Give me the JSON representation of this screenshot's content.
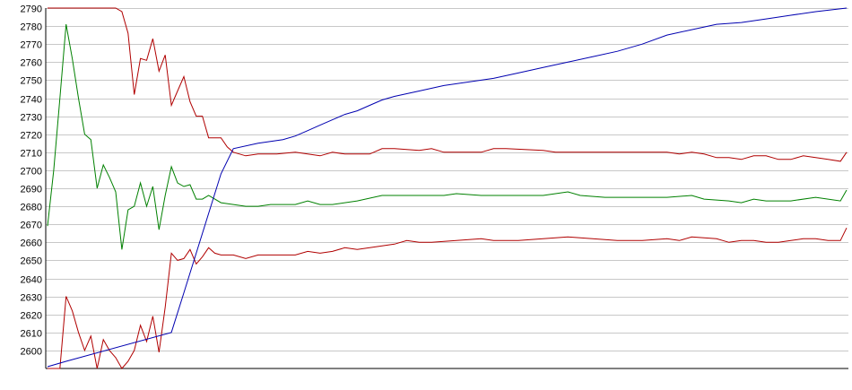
{
  "chart_data": {
    "type": "line",
    "title": "",
    "xlabel": "",
    "ylabel": "",
    "ylim": [
      2590,
      2790
    ],
    "y_ticks": [
      2600,
      2610,
      2620,
      2630,
      2640,
      2650,
      2660,
      2670,
      2680,
      2690,
      2700,
      2710,
      2720,
      2730,
      2740,
      2750,
      2760,
      2770,
      2780,
      2790
    ],
    "y_tick_labels": [
      "2600",
      "2610",
      "2620",
      "2630",
      "2640",
      "2650",
      "2660",
      "2670",
      "2680",
      "2690",
      "2700",
      "2710",
      "2720",
      "2730",
      "2740",
      "2750",
      "2760",
      "2770",
      "2780",
      "2790"
    ],
    "grid": true,
    "legend": "none",
    "x_count": 130,
    "series": [
      {
        "color": "#b00000",
        "keypoints": [
          [
            0,
            2790
          ],
          [
            11,
            2790
          ],
          [
            12,
            2788
          ],
          [
            13,
            2776
          ],
          [
            14,
            2742
          ],
          [
            15,
            2762
          ],
          [
            16,
            2761
          ],
          [
            17,
            2773
          ],
          [
            18,
            2755
          ],
          [
            19,
            2764
          ],
          [
            20,
            2736
          ],
          [
            21,
            2744
          ],
          [
            22,
            2752
          ],
          [
            23,
            2738
          ],
          [
            24,
            2730
          ],
          [
            25,
            2730
          ],
          [
            26,
            2718
          ],
          [
            27,
            2718
          ],
          [
            28,
            2718
          ],
          [
            29,
            2713
          ],
          [
            30,
            2710
          ],
          [
            32,
            2708
          ],
          [
            34,
            2709
          ],
          [
            37,
            2709
          ],
          [
            40,
            2710
          ],
          [
            42,
            2709
          ],
          [
            44,
            2708
          ],
          [
            46,
            2710
          ],
          [
            48,
            2709
          ],
          [
            52,
            2709
          ],
          [
            54,
            2712
          ],
          [
            56,
            2712
          ],
          [
            60,
            2711
          ],
          [
            62,
            2712
          ],
          [
            64,
            2710
          ],
          [
            66,
            2710
          ],
          [
            70,
            2710
          ],
          [
            72,
            2712
          ],
          [
            74,
            2712
          ],
          [
            80,
            2711
          ],
          [
            82,
            2710
          ],
          [
            84,
            2710
          ],
          [
            90,
            2710
          ],
          [
            100,
            2710
          ],
          [
            102,
            2709
          ],
          [
            104,
            2710
          ],
          [
            106,
            2709
          ],
          [
            108,
            2707
          ],
          [
            110,
            2707
          ],
          [
            112,
            2706
          ],
          [
            114,
            2708
          ],
          [
            116,
            2708
          ],
          [
            118,
            2706
          ],
          [
            120,
            2706
          ],
          [
            122,
            2708
          ],
          [
            124,
            2707
          ],
          [
            126,
            2706
          ],
          [
            128,
            2705
          ],
          [
            129,
            2710
          ]
        ]
      },
      {
        "color": "#008000",
        "keypoints": [
          [
            0,
            2669
          ],
          [
            1,
            2700
          ],
          [
            2,
            2740
          ],
          [
            3,
            2781
          ],
          [
            4,
            2762
          ],
          [
            5,
            2740
          ],
          [
            6,
            2720
          ],
          [
            7,
            2717
          ],
          [
            8,
            2690
          ],
          [
            9,
            2703
          ],
          [
            10,
            2696
          ],
          [
            11,
            2688
          ],
          [
            12,
            2656
          ],
          [
            13,
            2678
          ],
          [
            14,
            2680
          ],
          [
            15,
            2693
          ],
          [
            16,
            2680
          ],
          [
            17,
            2691
          ],
          [
            18,
            2667
          ],
          [
            19,
            2686
          ],
          [
            20,
            2702
          ],
          [
            21,
            2693
          ],
          [
            22,
            2691
          ],
          [
            23,
            2692
          ],
          [
            24,
            2684
          ],
          [
            25,
            2684
          ],
          [
            26,
            2686
          ],
          [
            28,
            2682
          ],
          [
            30,
            2681
          ],
          [
            32,
            2680
          ],
          [
            34,
            2680
          ],
          [
            36,
            2681
          ],
          [
            40,
            2681
          ],
          [
            42,
            2683
          ],
          [
            44,
            2681
          ],
          [
            46,
            2681
          ],
          [
            50,
            2683
          ],
          [
            54,
            2686
          ],
          [
            60,
            2686
          ],
          [
            64,
            2686
          ],
          [
            66,
            2687
          ],
          [
            70,
            2686
          ],
          [
            74,
            2686
          ],
          [
            80,
            2686
          ],
          [
            84,
            2688
          ],
          [
            86,
            2686
          ],
          [
            90,
            2685
          ],
          [
            94,
            2685
          ],
          [
            100,
            2685
          ],
          [
            104,
            2686
          ],
          [
            106,
            2684
          ],
          [
            110,
            2683
          ],
          [
            112,
            2682
          ],
          [
            114,
            2684
          ],
          [
            116,
            2683
          ],
          [
            120,
            2683
          ],
          [
            124,
            2685
          ],
          [
            126,
            2684
          ],
          [
            128,
            2683
          ],
          [
            129,
            2689
          ]
        ]
      },
      {
        "color": "#b00000",
        "keypoints": [
          [
            0,
            2590
          ],
          [
            2,
            2590
          ],
          [
            3,
            2630
          ],
          [
            4,
            2622
          ],
          [
            5,
            2610
          ],
          [
            6,
            2600
          ],
          [
            7,
            2608
          ],
          [
            8,
            2590
          ],
          [
            9,
            2606
          ],
          [
            10,
            2600
          ],
          [
            11,
            2596
          ],
          [
            12,
            2590
          ],
          [
            13,
            2594
          ],
          [
            14,
            2600
          ],
          [
            15,
            2614
          ],
          [
            16,
            2605
          ],
          [
            17,
            2619
          ],
          [
            18,
            2599
          ],
          [
            19,
            2624
          ],
          [
            20,
            2654
          ],
          [
            21,
            2650
          ],
          [
            22,
            2651
          ],
          [
            23,
            2656
          ],
          [
            24,
            2648
          ],
          [
            25,
            2652
          ],
          [
            26,
            2657
          ],
          [
            27,
            2654
          ],
          [
            28,
            2653
          ],
          [
            30,
            2653
          ],
          [
            32,
            2651
          ],
          [
            34,
            2653
          ],
          [
            40,
            2653
          ],
          [
            42,
            2655
          ],
          [
            44,
            2654
          ],
          [
            46,
            2655
          ],
          [
            48,
            2657
          ],
          [
            50,
            2656
          ],
          [
            52,
            2657
          ],
          [
            56,
            2659
          ],
          [
            58,
            2661
          ],
          [
            60,
            2660
          ],
          [
            62,
            2660
          ],
          [
            66,
            2661
          ],
          [
            70,
            2662
          ],
          [
            72,
            2661
          ],
          [
            76,
            2661
          ],
          [
            80,
            2662
          ],
          [
            84,
            2663
          ],
          [
            88,
            2662
          ],
          [
            92,
            2661
          ],
          [
            96,
            2661
          ],
          [
            100,
            2662
          ],
          [
            102,
            2661
          ],
          [
            104,
            2663
          ],
          [
            108,
            2662
          ],
          [
            110,
            2660
          ],
          [
            112,
            2661
          ],
          [
            114,
            2661
          ],
          [
            116,
            2660
          ],
          [
            118,
            2660
          ],
          [
            120,
            2661
          ],
          [
            122,
            2662
          ],
          [
            124,
            2662
          ],
          [
            126,
            2661
          ],
          [
            128,
            2661
          ],
          [
            129,
            2668
          ]
        ]
      },
      {
        "color": "#0000b0",
        "keypoints": [
          [
            0,
            2591
          ],
          [
            3,
            2594
          ],
          [
            20,
            2610
          ],
          [
            22,
            2632
          ],
          [
            24,
            2654
          ],
          [
            26,
            2676
          ],
          [
            28,
            2698
          ],
          [
            30,
            2712
          ],
          [
            34,
            2715
          ],
          [
            38,
            2717
          ],
          [
            40,
            2719
          ],
          [
            42,
            2722
          ],
          [
            44,
            2725
          ],
          [
            46,
            2728
          ],
          [
            48,
            2731
          ],
          [
            50,
            2733
          ],
          [
            52,
            2736
          ],
          [
            54,
            2739
          ],
          [
            56,
            2741
          ],
          [
            60,
            2744
          ],
          [
            64,
            2747
          ],
          [
            68,
            2749
          ],
          [
            72,
            2751
          ],
          [
            76,
            2754
          ],
          [
            80,
            2757
          ],
          [
            84,
            2760
          ],
          [
            88,
            2763
          ],
          [
            92,
            2766
          ],
          [
            96,
            2770
          ],
          [
            100,
            2775
          ],
          [
            104,
            2778
          ],
          [
            108,
            2781
          ],
          [
            112,
            2782
          ],
          [
            116,
            2784
          ],
          [
            120,
            2786
          ],
          [
            124,
            2788
          ],
          [
            129,
            2790
          ]
        ]
      }
    ]
  }
}
